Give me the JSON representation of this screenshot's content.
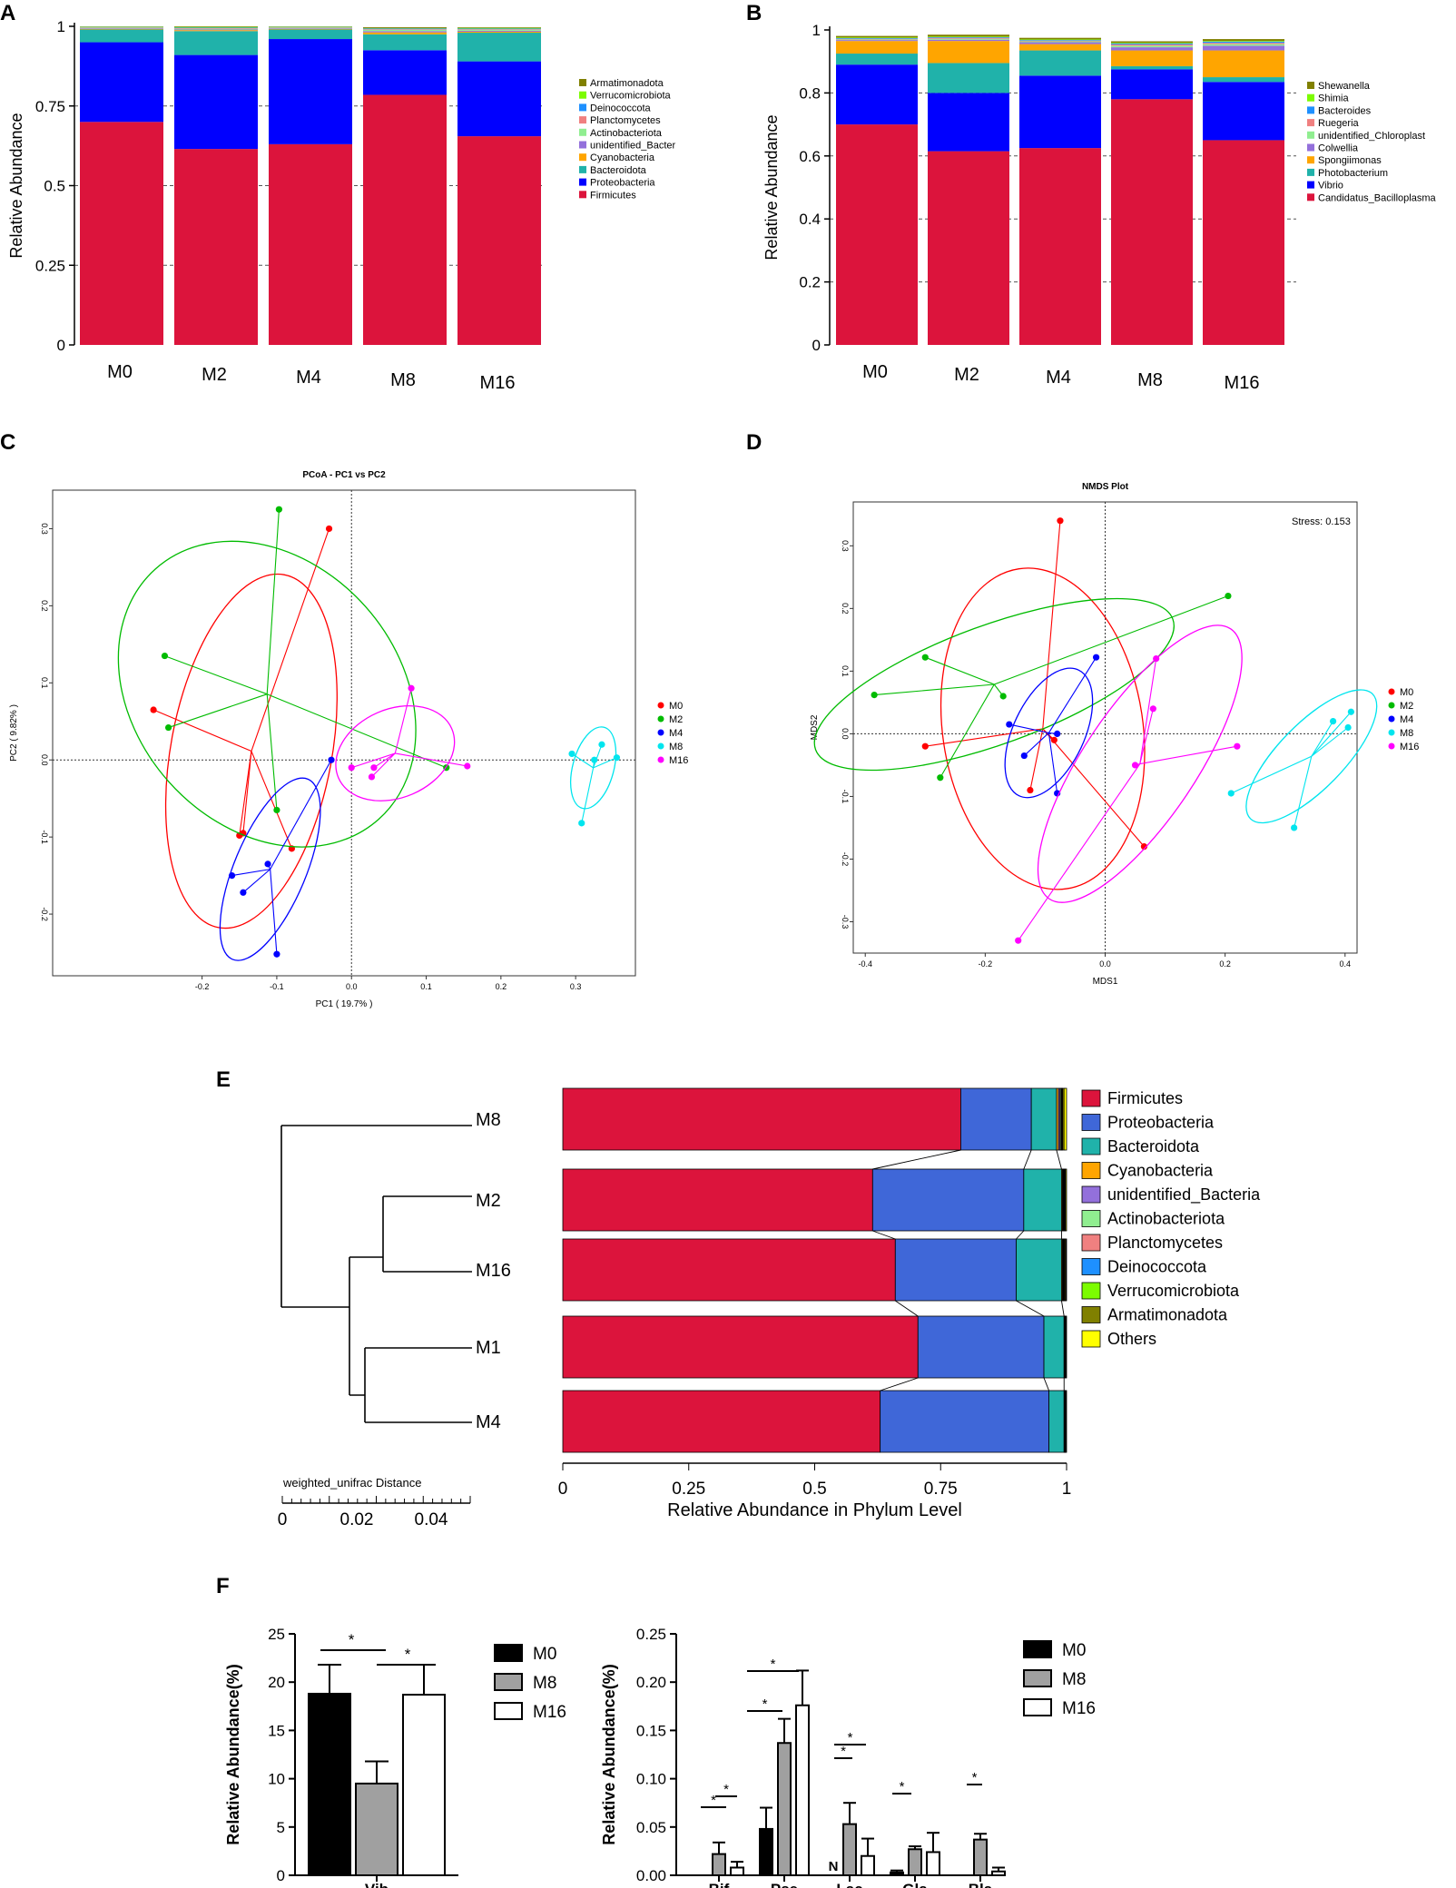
{
  "chart_data": [
    {
      "panel": "A",
      "type": "bar",
      "stacked": true,
      "ylabel": "Relative Abundance",
      "categories": [
        "M0",
        "M2",
        "M4",
        "M8",
        "M16"
      ],
      "yticks": [
        "0",
        "0.25",
        "0.5",
        "0.75",
        "1"
      ],
      "ylim": [
        0,
        1
      ],
      "legend": [
        "Armatimonadota",
        "Verrucomicrobiota",
        "Deinococcota",
        "Planctomycetes",
        "Actinobacteriota",
        "unidentified_Bacter",
        "Cyanobacteria",
        "Bacteroidota",
        "Proteobacteria",
        "Firmicutes"
      ],
      "series": [
        {
          "name": "Firmicutes",
          "color": "#DC143C",
          "values": [
            0.7,
            0.615,
            0.63,
            0.785,
            0.655
          ]
        },
        {
          "name": "Proteobacteria",
          "color": "#0000FF",
          "values": [
            0.25,
            0.295,
            0.33,
            0.14,
            0.235
          ]
        },
        {
          "name": "Bacteroidota",
          "color": "#20B2AA",
          "values": [
            0.04,
            0.075,
            0.03,
            0.05,
            0.09
          ]
        },
        {
          "name": "Cyanobacteria",
          "color": "#FFA500",
          "values": [
            0.002,
            0.003,
            0.002,
            0.006,
            0.003
          ]
        },
        {
          "name": "unidentified_Bacter",
          "color": "#9370DB",
          "values": [
            0.002,
            0.002,
            0.002,
            0.004,
            0.003
          ]
        },
        {
          "name": "Actinobacteriota",
          "color": "#90EE90",
          "values": [
            0.002,
            0.002,
            0.002,
            0.004,
            0.003
          ]
        },
        {
          "name": "Planctomycetes",
          "color": "#F08080",
          "values": [
            0.001,
            0.002,
            0.001,
            0.002,
            0.002
          ]
        },
        {
          "name": "Deinococcota",
          "color": "#1E90FF",
          "values": [
            0.001,
            0.002,
            0.001,
            0.002,
            0.002
          ]
        },
        {
          "name": "Verrucomicrobiota",
          "color": "#7CFC00",
          "values": [
            0.001,
            0.002,
            0.001,
            0.001,
            0.002
          ]
        },
        {
          "name": "Armatimonadota",
          "color": "#808000",
          "values": [
            0.001,
            0.002,
            0.001,
            0.003,
            0.002
          ]
        }
      ]
    },
    {
      "panel": "B",
      "type": "bar",
      "stacked": true,
      "ylabel": "Relative Abundance",
      "categories": [
        "M0",
        "M2",
        "M4",
        "M8",
        "M16"
      ],
      "yticks": [
        "0",
        "0.2",
        "0.4",
        "0.6",
        "0.8",
        "1"
      ],
      "ylim": [
        0,
        1
      ],
      "legend": [
        "Shewanella",
        "Shimia",
        "Bacteroides",
        "Ruegeria",
        "unidentified_Chloroplast",
        "Colwellia",
        "Spongiimonas",
        "Photobacterium",
        "Vibrio",
        "Candidatus_Bacilloplasma"
      ],
      "series": [
        {
          "name": "Candidatus_Bacilloplasma",
          "color": "#DC143C",
          "values": [
            0.7,
            0.615,
            0.625,
            0.78,
            0.65
          ]
        },
        {
          "name": "Vibrio",
          "color": "#0000FF",
          "values": [
            0.19,
            0.185,
            0.23,
            0.095,
            0.185
          ]
        },
        {
          "name": "Photobacterium",
          "color": "#20B2AA",
          "values": [
            0.035,
            0.095,
            0.08,
            0.01,
            0.015
          ]
        },
        {
          "name": "Spongiimonas",
          "color": "#FFA500",
          "values": [
            0.04,
            0.07,
            0.02,
            0.05,
            0.085
          ]
        },
        {
          "name": "Colwellia",
          "color": "#9370DB",
          "values": [
            0.003,
            0.004,
            0.006,
            0.01,
            0.015
          ]
        },
        {
          "name": "unidentified_Chloroplast",
          "color": "#90EE90",
          "values": [
            0.002,
            0.003,
            0.003,
            0.005,
            0.005
          ]
        },
        {
          "name": "Ruegeria",
          "color": "#F08080",
          "values": [
            0.002,
            0.003,
            0.002,
            0.004,
            0.004
          ]
        },
        {
          "name": "Bacteroides",
          "color": "#1E90FF",
          "values": [
            0.002,
            0.002,
            0.002,
            0.003,
            0.004
          ]
        },
        {
          "name": "Shimia",
          "color": "#7CFC00",
          "values": [
            0.002,
            0.002,
            0.002,
            0.002,
            0.002
          ]
        },
        {
          "name": "Shewanella",
          "color": "#808000",
          "values": [
            0.005,
            0.006,
            0.005,
            0.005,
            0.006
          ]
        }
      ]
    },
    {
      "panel": "C",
      "type": "scatter",
      "title": "PCoA - PC1 vs PC2",
      "xlabel": "PC1 ( 19.7% )",
      "ylabel": "PC2 ( 9.82% )",
      "xticks": [
        "-0.2",
        "-0.1",
        "0.0",
        "0.1",
        "0.2",
        "0.3"
      ],
      "yticks": [
        "0.3",
        "0.2",
        "0.1",
        "0.0",
        "-0.1",
        "-0.2"
      ],
      "xlim": [
        -0.4,
        0.38
      ],
      "ylim": [
        -0.28,
        0.35
      ],
      "groups": [
        {
          "name": "M0",
          "color": "#FF0000",
          "points": [
            [
              -0.03,
              0.3
            ],
            [
              -0.265,
              0.065
            ],
            [
              -0.145,
              -0.095
            ],
            [
              -0.15,
              -0.098
            ],
            [
              -0.08,
              -0.115
            ]
          ]
        },
        {
          "name": "M2",
          "color": "#00BB00",
          "points": [
            [
              -0.097,
              0.325
            ],
            [
              -0.25,
              0.135
            ],
            [
              -0.245,
              0.042
            ],
            [
              0.127,
              -0.01
            ],
            [
              -0.1,
              -0.065
            ]
          ]
        },
        {
          "name": "M4",
          "color": "#0000FF",
          "points": [
            [
              -0.027,
              0.0
            ],
            [
              -0.16,
              -0.15
            ],
            [
              -0.145,
              -0.172
            ],
            [
              -0.1,
              -0.252
            ],
            [
              -0.112,
              -0.135
            ]
          ]
        },
        {
          "name": "M8",
          "color": "#00E5EE",
          "points": [
            [
              0.295,
              0.008
            ],
            [
              0.335,
              0.02
            ],
            [
              0.355,
              0.003
            ],
            [
              0.308,
              -0.082
            ],
            [
              0.325,
              0.0
            ]
          ]
        },
        {
          "name": "M16",
          "color": "#FF00FF",
          "points": [
            [
              0.08,
              0.093
            ],
            [
              0.155,
              -0.008
            ],
            [
              0.027,
              -0.022
            ],
            [
              0.03,
              -0.01
            ],
            [
              0.0,
              -0.01
            ]
          ]
        }
      ]
    },
    {
      "panel": "D",
      "type": "scatter",
      "title": "NMDS Plot",
      "annotation": "Stress:  0.153",
      "xlabel": "MDS1",
      "ylabel": "MDS2",
      "xticks": [
        "-0.4",
        "-0.2",
        "0.0",
        "0.2",
        "0.4"
      ],
      "yticks": [
        "0.3",
        "0.2",
        "0.1",
        "0.0",
        "-0.1",
        "-0.2",
        "-0.3"
      ],
      "xlim": [
        -0.42,
        0.42
      ],
      "ylim": [
        -0.35,
        0.37
      ],
      "groups": [
        {
          "name": "M0",
          "color": "#FF0000",
          "points": [
            [
              -0.075,
              0.34
            ],
            [
              -0.3,
              -0.02
            ],
            [
              -0.125,
              -0.09
            ],
            [
              0.065,
              -0.18
            ],
            [
              -0.085,
              -0.01
            ]
          ]
        },
        {
          "name": "M2",
          "color": "#00BB00",
          "points": [
            [
              0.205,
              0.22
            ],
            [
              -0.385,
              0.062
            ],
            [
              -0.3,
              0.122
            ],
            [
              -0.275,
              -0.07
            ],
            [
              -0.17,
              0.06
            ]
          ]
        },
        {
          "name": "M4",
          "color": "#0000FF",
          "points": [
            [
              -0.015,
              0.122
            ],
            [
              -0.16,
              0.015
            ],
            [
              -0.135,
              -0.035
            ],
            [
              -0.08,
              -0.095
            ],
            [
              -0.08,
              0.0
            ]
          ]
        },
        {
          "name": "M8",
          "color": "#00E5EE",
          "points": [
            [
              0.41,
              0.035
            ],
            [
              0.405,
              0.01
            ],
            [
              0.21,
              -0.095
            ],
            [
              0.315,
              -0.15
            ],
            [
              0.38,
              0.02
            ]
          ]
        },
        {
          "name": "M16",
          "color": "#FF00FF",
          "points": [
            [
              0.085,
              0.12
            ],
            [
              0.08,
              0.04
            ],
            [
              0.22,
              -0.02
            ],
            [
              -0.145,
              -0.33
            ],
            [
              0.05,
              -0.05
            ]
          ]
        }
      ]
    },
    {
      "panel": "E",
      "type": "bar",
      "stacked": true,
      "orientation": "horizontal",
      "xlabel": "Relative Abundance in Phylum Level",
      "dendrogram_label": "weighted_unifrac Distance",
      "dendrogram_ticks": [
        "0",
        "0.02",
        "0.04"
      ],
      "categories": [
        "M8",
        "M2",
        "M16",
        "M1",
        "M4"
      ],
      "xticks": [
        "0",
        "0.25",
        "0.5",
        "0.75",
        "1"
      ],
      "xlim": [
        0,
        1
      ],
      "legend": [
        "Firmicutes",
        "Proteobacteria",
        "Bacteroidota",
        "Cyanobacteria",
        "unidentified_Bacteria",
        "Actinobacteriota",
        "Planctomycetes",
        "Deinococcota",
        "Verrucomicrobiota",
        "Armatimonadota",
        "Others"
      ],
      "series": [
        {
          "name": "Firmicutes",
          "color": "#DC143C",
          "values": [
            0.79,
            0.615,
            0.66,
            0.705,
            0.63
          ]
        },
        {
          "name": "Proteobacteria",
          "color": "#3F67D8",
          "values": [
            0.14,
            0.3,
            0.24,
            0.25,
            0.335
          ]
        },
        {
          "name": "Bacteroidota",
          "color": "#20B2AA",
          "values": [
            0.05,
            0.075,
            0.09,
            0.04,
            0.03
          ]
        },
        {
          "name": "Cyanobacteria",
          "color": "#FFA500",
          "values": [
            0.004,
            0.002,
            0.002,
            0.001,
            0.001
          ]
        },
        {
          "name": "unidentified_Bacteria",
          "color": "#9370DB",
          "values": [
            0.003,
            0.001,
            0.001,
            0.001,
            0.001
          ]
        },
        {
          "name": "Actinobacteriota",
          "color": "#90EE90",
          "values": [
            0.002,
            0.001,
            0.001,
            0.001,
            0.001
          ]
        },
        {
          "name": "Planctomycetes",
          "color": "#F08080",
          "values": [
            0.001,
            0.001,
            0.001,
            0.0,
            0.0
          ]
        },
        {
          "name": "Deinococcota",
          "color": "#1E90FF",
          "values": [
            0.001,
            0.001,
            0.001,
            0.0,
            0.0
          ]
        },
        {
          "name": "Verrucomicrobiota",
          "color": "#7CFC00",
          "values": [
            0.001,
            0.001,
            0.001,
            0.0,
            0.0
          ]
        },
        {
          "name": "Armatimonadota",
          "color": "#808000",
          "values": [
            0.003,
            0.001,
            0.002,
            0.001,
            0.001
          ]
        },
        {
          "name": "Others",
          "color": "#FFFF00",
          "values": [
            0.005,
            0.002,
            0.001,
            0.001,
            0.001
          ]
        }
      ]
    },
    {
      "panel": "F1",
      "type": "bar",
      "ylabel": "Relative Abundance(%)",
      "categories": [
        "Vib"
      ],
      "yticks": [
        "0",
        "5",
        "10",
        "15",
        "20",
        "25"
      ],
      "ylim": [
        0,
        25
      ],
      "legend": [
        "M0",
        "M8",
        "M16"
      ],
      "series": [
        {
          "name": "M0",
          "fill": "#000000",
          "values": [
            18.8
          ],
          "errors": [
            3.0
          ]
        },
        {
          "name": "M8",
          "fill": "#A0A0A0",
          "values": [
            9.5
          ],
          "errors": [
            2.3
          ]
        },
        {
          "name": "M16",
          "fill": "#FFFFFF",
          "values": [
            18.7
          ],
          "errors": [
            3.1
          ]
        }
      ],
      "significance": [
        {
          "from": "M0",
          "to": "M8",
          "label": "*"
        },
        {
          "from": "M8",
          "to": "M16",
          "label": "*"
        }
      ]
    },
    {
      "panel": "F2",
      "type": "bar",
      "ylabel": "Relative Abundance(%)",
      "categories": [
        "Bif",
        "Pse",
        "Lac",
        "Gla",
        "Bla"
      ],
      "yticks": [
        "0.00",
        "0.05",
        "0.10",
        "0.15",
        "0.20",
        "0.25"
      ],
      "ylim": [
        0,
        0.25
      ],
      "legend": [
        "M0",
        "M8",
        "M16"
      ],
      "na_label": "N",
      "series": [
        {
          "name": "M0",
          "fill": "#000000",
          "values": [
            0.0,
            0.048,
            0.0,
            0.003,
            0.0
          ],
          "errors": [
            0,
            0.022,
            0,
            0.002,
            0
          ]
        },
        {
          "name": "M8",
          "fill": "#A0A0A0",
          "values": [
            0.022,
            0.137,
            0.053,
            0.027,
            0.037
          ],
          "errors": [
            0.012,
            0.025,
            0.022,
            0.003,
            0.006
          ]
        },
        {
          "name": "M16",
          "fill": "#FFFFFF",
          "values": [
            0.008,
            0.176,
            0.02,
            0.024,
            0.004
          ],
          "errors": [
            0.006,
            0.036,
            0.018,
            0.02,
            0.004
          ]
        }
      ],
      "significance": [
        {
          "category": "Bif",
          "label": "*"
        },
        {
          "category": "Bif",
          "label": "*"
        },
        {
          "category": "Pse",
          "label": "*"
        },
        {
          "category": "Pse",
          "label": "*"
        },
        {
          "category": "Lac",
          "label": "*"
        },
        {
          "category": "Lac",
          "label": "*"
        },
        {
          "category": "Gla",
          "label": "*"
        },
        {
          "category": "Bla",
          "label": "*"
        }
      ]
    }
  ],
  "panel_labels": [
    "A",
    "B",
    "C",
    "D",
    "E",
    "F"
  ],
  "colors": {
    "dashed_grid": "#555555",
    "axis": "#000000"
  }
}
